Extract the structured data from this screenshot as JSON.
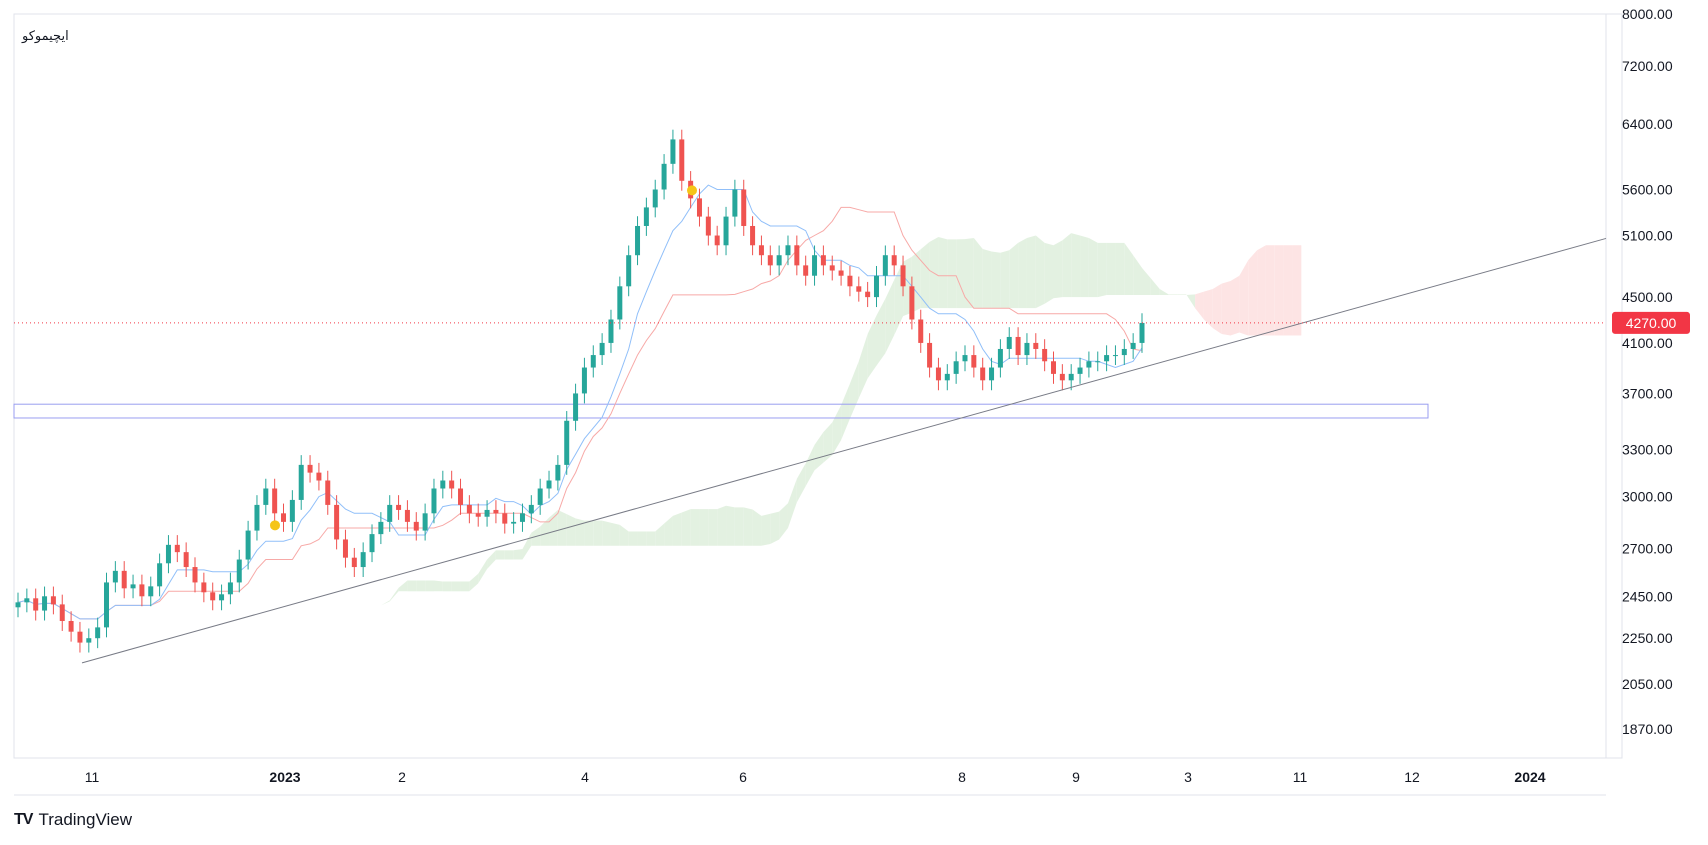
{
  "symbol": "ایچیموکو",
  "brand": {
    "logo": "TV",
    "name": "TradingView"
  },
  "price_badge": {
    "label": "4270.00",
    "color": "#f23645"
  },
  "colors": {
    "up": "#26a69a",
    "down": "#ef5350",
    "tenkan": "#90bff9",
    "kijun": "#f7a9a7",
    "cloud_bull": "#e3f1e1",
    "cloud_bear": "#fde4e4",
    "trendline": "#787b86",
    "zone": "#9a9ef0",
    "price_line": "#f23645",
    "marker": "#f5c518"
  },
  "chart_data": {
    "type": "candlestick",
    "indicator": "Ichimoku",
    "y_scale": "log",
    "ylim": [
      1800,
      8000
    ],
    "y_ticks": [
      "8000.00",
      "7200.00",
      "6400.00",
      "5600.00",
      "5100.00",
      "4500.00",
      "4100.00",
      "3700.00",
      "3300.00",
      "3000.00",
      "2700.00",
      "2450.00",
      "2250.00",
      "2050.00",
      "1870.00"
    ],
    "x_ticks": [
      {
        "label": "11",
        "bold": false
      },
      {
        "label": "2023",
        "bold": true
      },
      {
        "label": "2",
        "bold": false
      },
      {
        "label": "4",
        "bold": false
      },
      {
        "label": "6",
        "bold": false
      },
      {
        "label": "8",
        "bold": false
      },
      {
        "label": "9",
        "bold": false
      },
      {
        "label": "3",
        "bold": false
      },
      {
        "label": "11",
        "bold": false
      },
      {
        "label": "12",
        "bold": false
      },
      {
        "label": "2024",
        "bold": true
      }
    ],
    "last_price": 4270,
    "price_path": [
      2420,
      2440,
      2380,
      2450,
      2410,
      2330,
      2280,
      2230,
      2250,
      2300,
      2520,
      2580,
      2490,
      2510,
      2450,
      2500,
      2620,
      2720,
      2680,
      2600,
      2520,
      2470,
      2430,
      2460,
      2520,
      2640,
      2800,
      2950,
      3050,
      2900,
      2850,
      2980,
      3200,
      3150,
      3100,
      2950,
      2750,
      2650,
      2600,
      2680,
      2780,
      2850,
      2950,
      2920,
      2850,
      2800,
      2900,
      3050,
      3100,
      3050,
      2950,
      2900,
      2880,
      2920,
      2900,
      2840,
      2850,
      2900,
      2950,
      3050,
      3100,
      3200,
      3500,
      3700,
      3900,
      4000,
      4100,
      4300,
      4600,
      4900,
      5200,
      5400,
      5600,
      5900,
      6200,
      5700,
      5500,
      5300,
      5100,
      5000,
      5300,
      5600,
      5200,
      5000,
      4900,
      4800,
      4900,
      5000,
      4800,
      4700,
      4900,
      4800,
      4750,
      4700,
      4600,
      4550,
      4500,
      4700,
      4900,
      4800,
      4600,
      4300,
      4100,
      3900,
      3800,
      3850,
      3950,
      4000,
      3900,
      3800,
      3900,
      4050,
      4150,
      4000,
      4100,
      4050,
      3950,
      3850,
      3800,
      3850,
      3900,
      3950,
      3950,
      4000,
      4000,
      4050,
      4100,
      4270
    ],
    "zone": {
      "low": 3520,
      "high": 3620
    },
    "trendline": {
      "from_price": 2140,
      "to_price": 5070
    },
    "markers": [
      {
        "price": 2830
      },
      {
        "price": 5590
      }
    ]
  }
}
